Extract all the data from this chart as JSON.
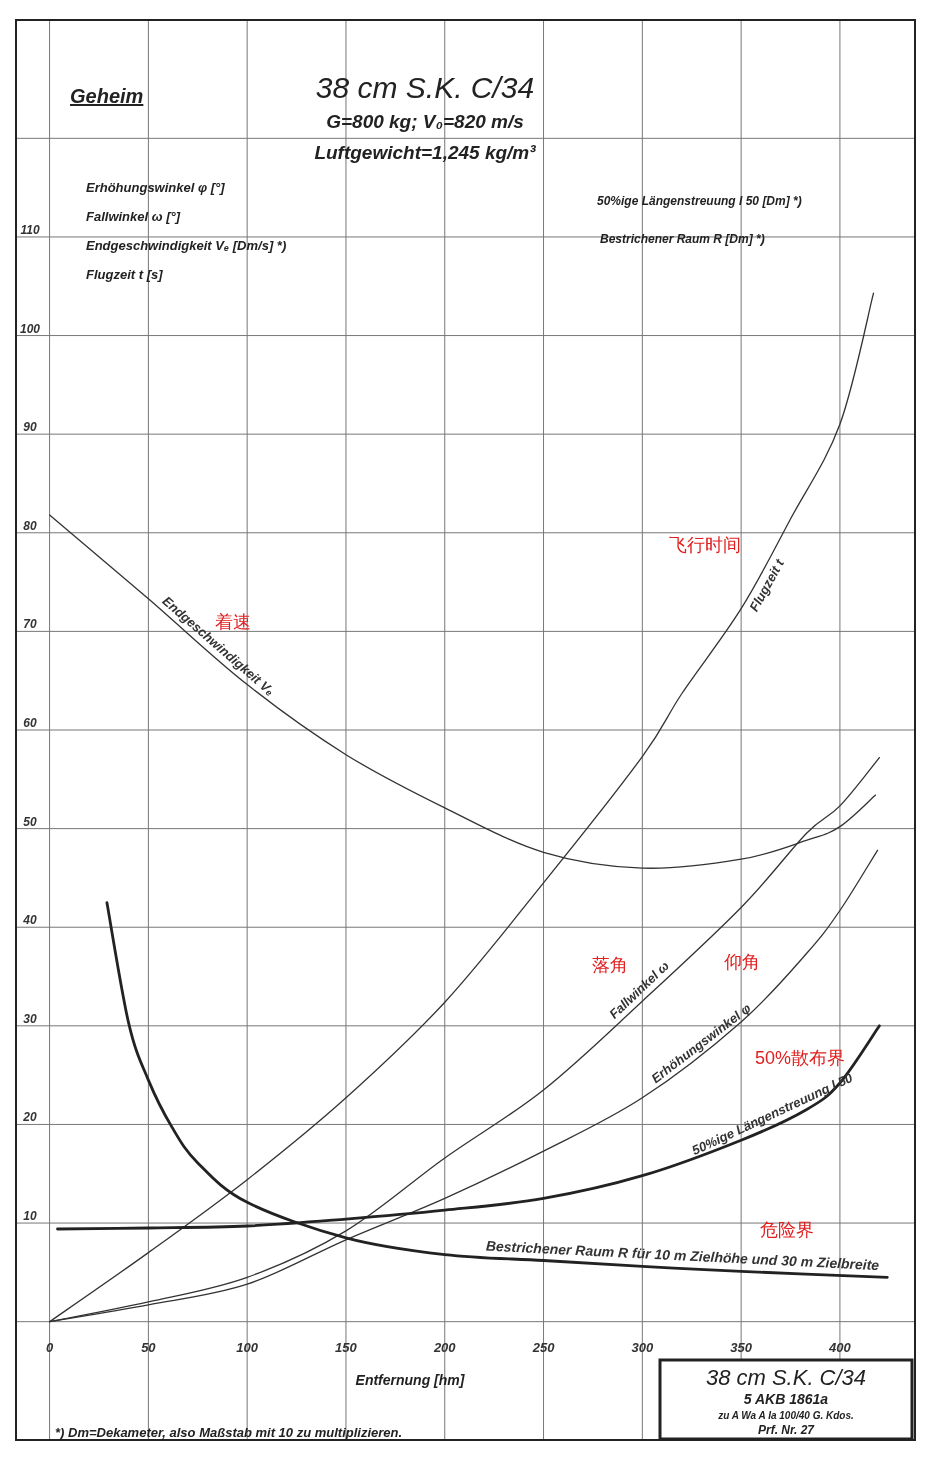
{
  "chart_data": {
    "type": "line",
    "title": "38 cm S.K. C/34",
    "subtitle": "G=800 kg; V₀=820 m/s\nLuftgewicht=1,245 kg/m³",
    "xlabel": "Entfernung [hm]",
    "xlim": [
      -17,
      438
    ],
    "ylim": [
      -12,
      132
    ],
    "xticks": [
      0,
      50,
      100,
      150,
      200,
      250,
      300,
      350,
      400
    ],
    "yticks": [
      {
        "value": 0,
        "label": null
      },
      10,
      20,
      30,
      40,
      50,
      60,
      70,
      80,
      90,
      100,
      110,
      {
        "value": 120,
        "label": null
      }
    ],
    "grid": true,
    "series": [
      {
        "name": "Erhöhungswinkel φ",
        "color": "#333333",
        "x": [
          0,
          50,
          100,
          150,
          200,
          250,
          300,
          350,
          383,
          400,
          419
        ],
        "values": [
          0,
          1.7,
          3.8,
          8.3,
          12.5,
          17.3,
          22.7,
          30.4,
          37.3,
          41.7,
          47.8
        ]
      },
      {
        "name": "Fallwinkel ω",
        "color": "#333333",
        "x": [
          0,
          50,
          100,
          150,
          200,
          250,
          300,
          350,
          383,
          400,
          420
        ],
        "values": [
          0,
          2,
          4.5,
          9.2,
          16.6,
          23.5,
          32.5,
          42,
          49.5,
          52.3,
          57.2
        ]
      },
      {
        "name": "Endgeschwindigkeit Vₑ",
        "color": "#333333",
        "x": [
          0,
          50,
          100,
          150,
          200,
          250,
          300,
          350,
          383,
          400,
          418
        ],
        "values": [
          81.8,
          73.3,
          64.6,
          57.5,
          52.1,
          47.6,
          46,
          46.9,
          48.8,
          50.2,
          53.4
        ]
      },
      {
        "name": "Flugzeit t",
        "color": "#333333",
        "x": [
          0,
          50,
          100,
          150,
          200,
          250,
          300,
          320,
          350,
          375,
          400,
          417
        ],
        "values": [
          0,
          7,
          14.4,
          22.7,
          32.4,
          44.5,
          57.3,
          63.7,
          72.3,
          81.4,
          91,
          104.3
        ]
      },
      {
        "name": "50%ige Längenstreuung l 50",
        "color": "#222222",
        "x": [
          4,
          50,
          100,
          150,
          200,
          250,
          300,
          350,
          383,
          400,
          420
        ],
        "values": [
          9.4,
          9.5,
          9.7,
          10.4,
          11.3,
          12.5,
          14.8,
          18.4,
          21.5,
          24.2,
          30
        ]
      },
      {
        "name": "Bestrichener Raum R für 10 m Zielhöhe und 30 m Zielbreite",
        "color": "#222222",
        "x": [
          29,
          40,
          50,
          62,
          75,
          100,
          150,
          200,
          250,
          300,
          350,
          424
        ],
        "values": [
          42.5,
          30.3,
          24.5,
          19.7,
          16.1,
          12.1,
          8.5,
          6.8,
          6.2,
          5.6,
          5.1,
          4.5
        ]
      }
    ],
    "annotations": [
      "Geheim",
      "Erhöhungswinkel φ [°]",
      "Fallwinkel ω [°]",
      "Endgeschwindigkeit Vₑ [Dm/s] *)",
      "Flugzeit t [s]",
      "50%ige Längenstreuung l 50 [Dm] *)",
      "Bestrichener Raum R [Dm] *)",
      "*) Dm=Dekameter, also Maßstab mit 10 zu multiplizieren.",
      "38 cm S.K. C/34",
      "5 AKB 1861a",
      "zu A Wa A Ia 100/40 G. Kdos.",
      "Prf. Nr. 27",
      "着速",
      "飞行时间",
      "落角",
      "仰角",
      "50%散布界",
      "危险界"
    ]
  }
}
